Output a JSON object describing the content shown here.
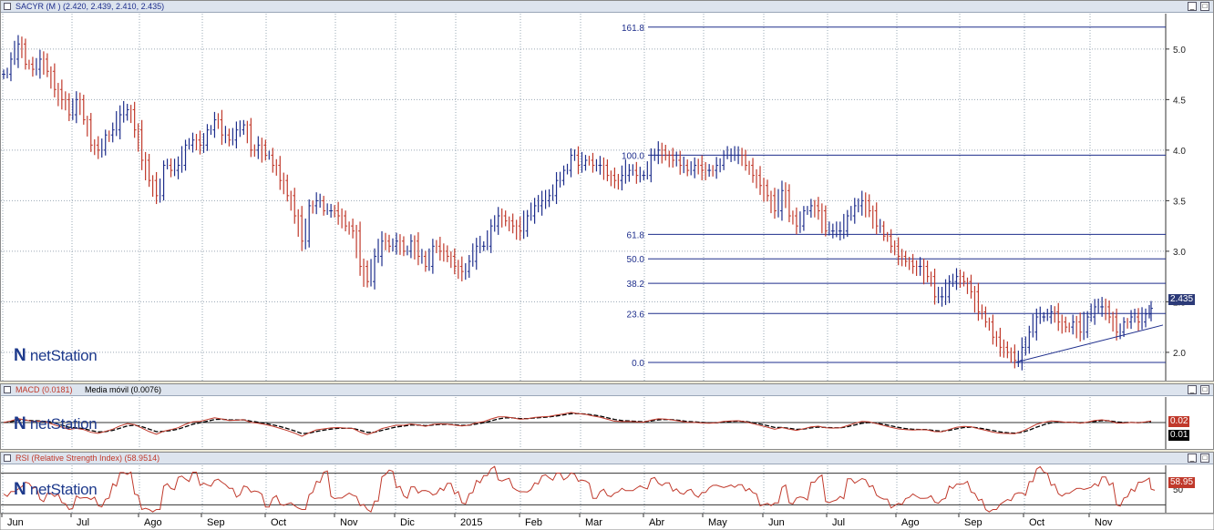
{
  "price_panel": {
    "title": "SACYR (M ) (2.420, 2.439, 2.410, 2.435)",
    "last_value": "2.435",
    "logo": "netStation"
  },
  "macd_panel": {
    "title": "MACD (0.0181)",
    "title2": "Media móvil (0.0076)",
    "value1": "0.02",
    "value2": "0.01",
    "logo": "netStation"
  },
  "rsi_panel": {
    "title": "RSI (Relative Strength Index) (58.9514)",
    "value": "58.95",
    "logo": "netStation"
  },
  "colors": {
    "up": "#1e2e8c",
    "down": "#c0392b",
    "macd_line": "#c0392b",
    "signal_line": "#000000",
    "fib_line": "#1e2e8c",
    "grid": "#9aa8b5"
  },
  "chart_data": [
    {
      "type": "ohlc",
      "title": "SACYR (M ) (2.420, 2.439, 2.410, 2.435)",
      "x_months": [
        "Jun",
        "Jul",
        "Ago",
        "Sep",
        "Oct",
        "Nov",
        "Dic",
        "2015",
        "Feb",
        "Mar",
        "Abr",
        "May",
        "Jun",
        "Jul",
        "Ago",
        "Sep",
        "Oct",
        "Nov"
      ],
      "y_ticks": [
        2.0,
        2.5,
        3.0,
        3.5,
        4.0,
        4.5,
        5.0
      ],
      "ylim": [
        1.72,
        5.35
      ],
      "grid": true,
      "last": 2.435,
      "fibonacci": {
        "levels": [
          "0.0",
          "23.6",
          "38.2",
          "50.0",
          "61.8",
          "100.0",
          "161.8"
        ],
        "low": 1.9,
        "high": 3.95
      },
      "trendline": [
        [
          1.9,
          "Sep"
        ],
        [
          2.27,
          "Nov"
        ]
      ],
      "close_path": [
        [
          0,
          4.75
        ],
        [
          8,
          4.9
        ],
        [
          16,
          5.05
        ],
        [
          24,
          4.85
        ],
        [
          32,
          4.8
        ],
        [
          40,
          4.9
        ],
        [
          48,
          4.78
        ],
        [
          56,
          4.6
        ],
        [
          64,
          4.5
        ],
        [
          72,
          4.35
        ],
        [
          80,
          4.5
        ],
        [
          88,
          4.3
        ],
        [
          96,
          4.05
        ],
        [
          104,
          4.0
        ],
        [
          112,
          4.15
        ],
        [
          120,
          4.2
        ],
        [
          128,
          4.35
        ],
        [
          136,
          4.4
        ],
        [
          144,
          4.2
        ],
        [
          152,
          3.9
        ],
        [
          160,
          3.7
        ],
        [
          168,
          3.55
        ],
        [
          176,
          3.85
        ],
        [
          184,
          3.8
        ],
        [
          192,
          3.85
        ],
        [
          200,
          4.05
        ],
        [
          208,
          4.1
        ],
        [
          216,
          4.05
        ],
        [
          224,
          4.2
        ],
        [
          232,
          4.3
        ],
        [
          240,
          4.15
        ],
        [
          248,
          4.1
        ],
        [
          256,
          4.2
        ],
        [
          264,
          4.25
        ],
        [
          272,
          4.0
        ],
        [
          280,
          4.05
        ],
        [
          288,
          3.95
        ],
        [
          296,
          3.85
        ],
        [
          304,
          3.7
        ],
        [
          312,
          3.55
        ],
        [
          320,
          3.35
        ],
        [
          328,
          3.1
        ],
        [
          336,
          3.45
        ],
        [
          344,
          3.5
        ],
        [
          352,
          3.4
        ],
        [
          360,
          3.4
        ],
        [
          368,
          3.35
        ],
        [
          376,
          3.25
        ],
        [
          384,
          3.2
        ],
        [
          392,
          2.85
        ],
        [
          400,
          2.7
        ],
        [
          408,
          2.95
        ],
        [
          416,
          3.1
        ],
        [
          424,
          3.05
        ],
        [
          432,
          3.1
        ],
        [
          440,
          3.0
        ],
        [
          448,
          3.1
        ],
        [
          456,
          2.95
        ],
        [
          464,
          2.85
        ],
        [
          472,
          3.05
        ],
        [
          480,
          3.0
        ],
        [
          488,
          2.95
        ],
        [
          496,
          2.85
        ],
        [
          504,
          2.8
        ],
        [
          512,
          2.9
        ],
        [
          520,
          3.05
        ],
        [
          528,
          3.05
        ],
        [
          536,
          3.25
        ],
        [
          544,
          3.35
        ],
        [
          552,
          3.3
        ],
        [
          560,
          3.25
        ],
        [
          568,
          3.2
        ],
        [
          576,
          3.35
        ],
        [
          584,
          3.45
        ],
        [
          592,
          3.5
        ],
        [
          600,
          3.55
        ],
        [
          608,
          3.7
        ],
        [
          616,
          3.8
        ],
        [
          624,
          3.95
        ],
        [
          632,
          3.85
        ],
        [
          640,
          3.9
        ],
        [
          648,
          3.85
        ],
        [
          656,
          3.85
        ],
        [
          664,
          3.75
        ],
        [
          672,
          3.7
        ],
        [
          680,
          3.75
        ],
        [
          688,
          3.8
        ],
        [
          696,
          3.75
        ],
        [
          704,
          3.75
        ],
        [
          712,
          3.95
        ],
        [
          720,
          4.0
        ],
        [
          728,
          3.95
        ],
        [
          736,
          3.9
        ],
        [
          744,
          3.85
        ],
        [
          752,
          3.8
        ],
        [
          760,
          3.85
        ],
        [
          768,
          3.8
        ],
        [
          776,
          3.8
        ],
        [
          784,
          3.85
        ],
        [
          792,
          3.95
        ],
        [
          800,
          3.95
        ],
        [
          808,
          3.95
        ],
        [
          816,
          3.85
        ],
        [
          824,
          3.75
        ],
        [
          832,
          3.65
        ],
        [
          840,
          3.55
        ],
        [
          848,
          3.4
        ],
        [
          856,
          3.6
        ],
        [
          864,
          3.35
        ],
        [
          872,
          3.25
        ],
        [
          880,
          3.4
        ],
        [
          888,
          3.45
        ],
        [
          896,
          3.4
        ],
        [
          904,
          3.2
        ],
        [
          912,
          3.2
        ],
        [
          920,
          3.2
        ],
        [
          928,
          3.35
        ],
        [
          936,
          3.45
        ],
        [
          944,
          3.5
        ],
        [
          952,
          3.4
        ],
        [
          960,
          3.25
        ],
        [
          968,
          3.15
        ],
        [
          976,
          3.05
        ],
        [
          984,
          2.95
        ],
        [
          992,
          2.9
        ],
        [
          1000,
          2.85
        ],
        [
          1008,
          2.85
        ],
        [
          1016,
          2.75
        ],
        [
          1024,
          2.55
        ],
        [
          1032,
          2.55
        ],
        [
          1040,
          2.7
        ],
        [
          1048,
          2.75
        ],
        [
          1056,
          2.7
        ],
        [
          1064,
          2.6
        ],
        [
          1072,
          2.4
        ],
        [
          1080,
          2.3
        ],
        [
          1088,
          2.15
        ],
        [
          1096,
          2.05
        ],
        [
          1104,
          2.0
        ],
        [
          1112,
          1.92
        ],
        [
          1120,
          2.05
        ],
        [
          1128,
          2.2
        ],
        [
          1136,
          2.35
        ],
        [
          1144,
          2.35
        ],
        [
          1152,
          2.4
        ],
        [
          1160,
          2.3
        ],
        [
          1168,
          2.25
        ],
        [
          1176,
          2.3
        ],
        [
          1184,
          2.2
        ],
        [
          1192,
          2.35
        ],
        [
          1200,
          2.45
        ],
        [
          1208,
          2.45
        ],
        [
          1216,
          2.35
        ],
        [
          1224,
          2.2
        ],
        [
          1232,
          2.3
        ],
        [
          1240,
          2.35
        ],
        [
          1248,
          2.3
        ],
        [
          1256,
          2.38
        ],
        [
          1262,
          2.435
        ]
      ]
    },
    {
      "type": "line",
      "title": "MACD (0.0181)",
      "series": [
        {
          "name": "MACD"
        },
        {
          "name": "Media móvil"
        }
      ],
      "y_ticks": [
        0.0
      ],
      "last": [
        0.02,
        0.01
      ]
    },
    {
      "type": "line",
      "title": "RSI (Relative Strength Index) (58.9514)",
      "series": [
        {
          "name": "RSI"
        }
      ],
      "y_ticks": [
        50
      ],
      "last": 58.95
    }
  ]
}
